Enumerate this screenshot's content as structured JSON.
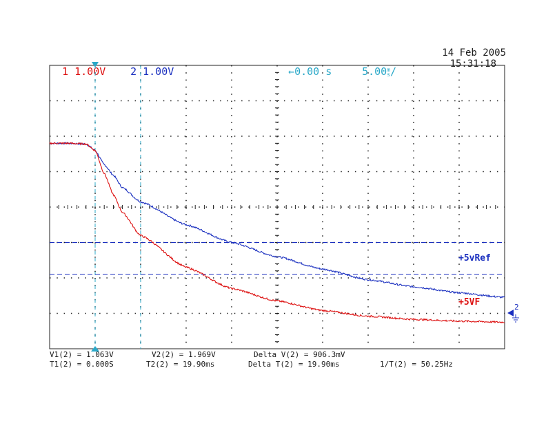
{
  "header": {
    "ch1_label": "1",
    "ch1_scale": "1.00V",
    "ch2_label": "2",
    "ch2_scale": "1.00V",
    "trigger_offset": "0.00 s",
    "timebase": "5.00",
    "timebase_unit_top": "m",
    "timebase_unit_bottom": "s",
    "timebase_suffix": "/",
    "date": "14 Feb 2005",
    "time": "15:31:18"
  },
  "colors": {
    "ch1": "#dd1111",
    "ch2": "#1a2fbf",
    "cursor": "#2aa8c8",
    "grid": "#222222",
    "frame": "#222222"
  },
  "measurements": {
    "v1": "V1(2) = 1.063V",
    "v2": "V2(2) = 1.969V",
    "delta_v": "Delta V(2) = 906.3mV",
    "t1": "T1(2) = 0.000S",
    "t2": "T2(2) = 19.90ms",
    "delta_t": "Delta T(2) = 19.90ms",
    "inv_t": "1/T(2) = 50.25Hz"
  },
  "chart_data": {
    "type": "line",
    "xlim": [
      -10,
      40
    ],
    "ylim": [
      -4,
      4
    ],
    "xdivs": 10,
    "ydivs": 8,
    "series": [
      {
        "name": "+5vRef",
        "channel": 2,
        "color_key": "ch2",
        "x": [
          -10,
          -8,
          -6,
          -5,
          -4,
          -3,
          -2,
          0,
          5,
          10,
          15,
          20,
          25,
          30,
          35,
          40
        ],
        "y": [
          1.8,
          1.8,
          1.78,
          1.6,
          1.2,
          0.9,
          0.55,
          0.15,
          -0.5,
          -1.0,
          -1.4,
          -1.75,
          -2.05,
          -2.25,
          -2.42,
          -2.55
        ]
      },
      {
        "name": "+5VF",
        "channel": 1,
        "color_key": "ch1",
        "x": [
          -10,
          -8,
          -6,
          -5,
          -4,
          -3,
          -2,
          0,
          5,
          10,
          15,
          20,
          25,
          30,
          35,
          40
        ],
        "y": [
          1.8,
          1.8,
          1.78,
          1.6,
          0.95,
          0.35,
          -0.15,
          -0.8,
          -1.7,
          -2.3,
          -2.65,
          -2.92,
          -3.08,
          -3.17,
          -3.22,
          -3.25
        ]
      }
    ],
    "cursors": {
      "vertical_t": [
        -5,
        0
      ],
      "horizontal_v": [
        -1.0,
        -1.9
      ]
    },
    "ground_marker": "2"
  }
}
